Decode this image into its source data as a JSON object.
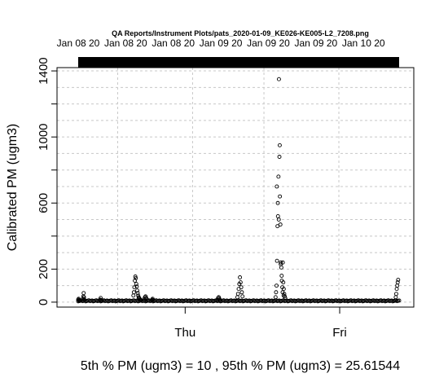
{
  "chart_data": {
    "type": "scatter",
    "title": "QA Reports/Instrument Plots/pats_2020-01-09_KE026-KE005-L2_7208.png",
    "ylabel": "Calibrated PM (ugm3)",
    "xlabel": "",
    "ylim": [
      -30,
      1420
    ],
    "xlim": [
      0,
      1
    ],
    "y_ticks": [
      0,
      200,
      600,
      1000,
      1400
    ],
    "y_tick_labels": [
      "0",
      "200",
      "600",
      "1000",
      "1400"
    ],
    "y_minor_ticks": [
      400,
      800,
      1200
    ],
    "x_tick_labels": [
      "Thu",
      "Fri"
    ],
    "x_ticks": [
      0.3333,
      0.8148
    ],
    "top_tick_labels": [
      "Jan 08 20",
      "Jan 08 20",
      "Jan 08 20",
      "Jan 09 20",
      "Jan 09 20",
      "Jan 09 20",
      "Jan 10 20"
    ],
    "top_ticks": [
      0.0,
      0.1481,
      0.2963,
      0.4444,
      0.5926,
      0.7407,
      0.8889
    ],
    "grid": true,
    "top_bar": {
      "start": 0.0,
      "end": 1.0
    },
    "footer": "5th % PM (ugm3) =  10 , 95th % PM (ugm3)  =  25.61544",
    "baseline": 8,
    "peaks": [
      {
        "x": [
          0.0,
          0.0014,
          0.0027,
          0.0041,
          0.0055
        ],
        "y": [
          15,
          20,
          12,
          10,
          8
        ]
      },
      {
        "x": [
          0.015,
          0.016,
          0.017,
          0.018,
          0.019
        ],
        "y": [
          20,
          35,
          55,
          30,
          15
        ]
      },
      {
        "x": [
          0.068,
          0.07,
          0.072
        ],
        "y": [
          15,
          25,
          12
        ]
      },
      {
        "x": [
          0.172,
          0.1735,
          0.175,
          0.1765,
          0.178,
          0.1795,
          0.181,
          0.1825,
          0.184,
          0.1855,
          0.187,
          0.1885,
          0.19,
          0.1915,
          0.193,
          0.1945
        ],
        "y": [
          40,
          60,
          90,
          130,
          155,
          145,
          110,
          95,
          70,
          55,
          40,
          30,
          25,
          20,
          15,
          12
        ]
      },
      {
        "x": [
          0.206,
          0.208,
          0.21,
          0.212,
          0.214
        ],
        "y": [
          20,
          30,
          35,
          25,
          15
        ]
      },
      {
        "x": [
          0.23,
          0.232,
          0.234
        ],
        "y": [
          15,
          20,
          12
        ]
      },
      {
        "x": [
          0.434,
          0.436,
          0.438,
          0.44,
          0.442
        ],
        "y": [
          15,
          25,
          30,
          20,
          12
        ]
      },
      {
        "x": [
          0.496,
          0.498,
          0.5,
          0.502,
          0.504,
          0.506,
          0.508,
          0.51,
          0.512
        ],
        "y": [
          30,
          50,
          80,
          110,
          150,
          120,
          90,
          60,
          35
        ]
      },
      {
        "x": [
          0.615,
          0.6165,
          0.618,
          0.6195,
          0.621,
          0.6225,
          0.624,
          0.6255,
          0.627,
          0.6285,
          0.63,
          0.6315,
          0.633,
          0.6345,
          0.636,
          0.6375,
          0.639,
          0.6405,
          0.642,
          0.6435,
          0.645
        ],
        "y": [
          30,
          60,
          100,
          250,
          460,
          520,
          760,
          1350,
          880,
          640,
          470,
          240,
          210,
          130,
          90,
          240,
          120,
          80,
          50,
          35,
          25
        ]
      },
      {
        "x": [
          0.619,
          0.622,
          0.625,
          0.628,
          0.631,
          0.634,
          0.637,
          0.64
        ],
        "y": [
          700,
          600,
          500,
          950,
          230,
          160,
          60,
          40
        ]
      },
      {
        "x": [
          0.988,
          0.9895,
          0.991,
          0.9925,
          0.994,
          0.9955,
          0.997
        ],
        "y": [
          10,
          30,
          50,
          80,
          100,
          120,
          135
        ]
      }
    ]
  }
}
